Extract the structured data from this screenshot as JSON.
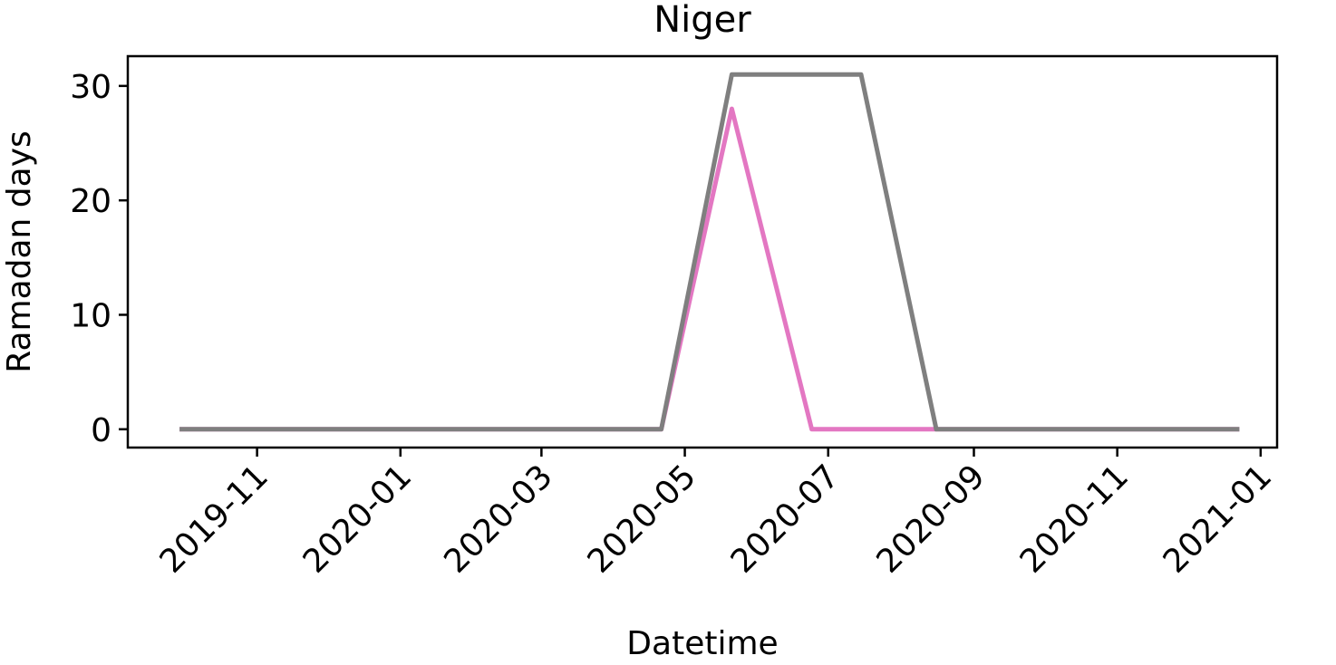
{
  "chart_data": {
    "type": "line",
    "title": "Niger",
    "xlabel": "Datetime",
    "ylabel": "Ramadan days",
    "x_ticks": [
      "2019-11",
      "2020-01",
      "2020-03",
      "2020-05",
      "2020-07",
      "2020-09",
      "2020-11",
      "2021-01"
    ],
    "y_ticks": [
      0,
      10,
      20,
      30
    ],
    "xlim": [
      "2019-09-07",
      "2021-01-08"
    ],
    "ylim": [
      -1.6,
      32.6
    ],
    "grid": false,
    "series": [
      {
        "color": "#e377c2",
        "points": [
          {
            "x": "2019-09-30",
            "y": 0
          },
          {
            "x": "2020-04-21",
            "y": 0
          },
          {
            "x": "2020-05-21",
            "y": 28
          },
          {
            "x": "2020-06-24",
            "y": 0
          },
          {
            "x": "2020-08-16",
            "y": 0
          },
          {
            "x": "2020-12-22",
            "y": 0
          }
        ]
      },
      {
        "color": "#7f7f7f",
        "points": [
          {
            "x": "2019-09-30",
            "y": 0
          },
          {
            "x": "2020-04-21",
            "y": 0
          },
          {
            "x": "2020-05-21",
            "y": 31
          },
          {
            "x": "2020-07-15",
            "y": 31
          },
          {
            "x": "2020-08-16",
            "y": 0
          },
          {
            "x": "2020-12-22",
            "y": 0
          }
        ]
      }
    ]
  }
}
